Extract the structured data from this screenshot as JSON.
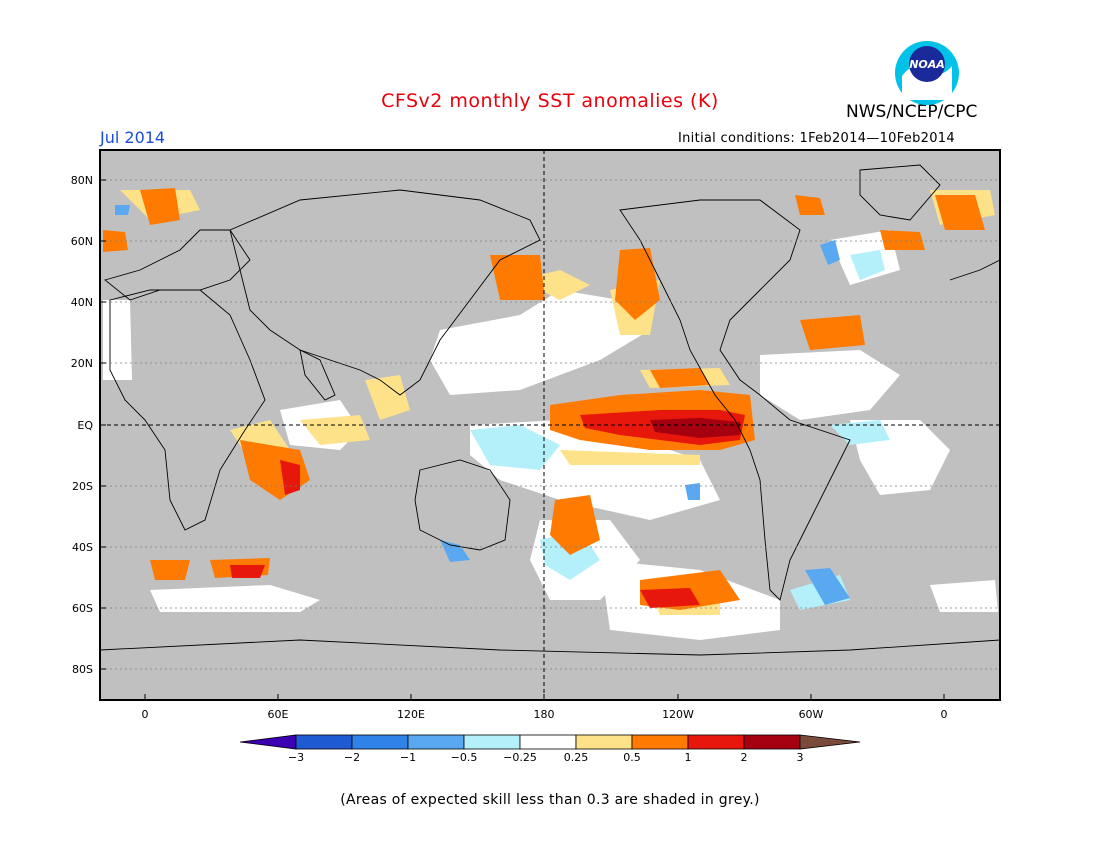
{
  "title": "CFSv2 monthly SST anomalies (K)",
  "organization": "NWS/NCEP/CPC",
  "logo_text": "NOAA",
  "forecast_month": "Jul 2014",
  "initial_conditions": "Initial conditions: 1Feb2014—10Feb2014",
  "footnote": "(Areas of expected skill less than 0.3 are shaded in grey.)",
  "map": {
    "lat_labels": [
      "80N",
      "60N",
      "40N",
      "20N",
      "EQ",
      "20S",
      "40S",
      "60S",
      "80S"
    ],
    "lon_labels": [
      "0",
      "60E",
      "120E",
      "180",
      "120W",
      "60W",
      "0"
    ],
    "colors": {
      "skill_mask": "#c0c0c0",
      "land": "#c0c0c0",
      "coast": "#000000",
      "grid": "#808080"
    }
  },
  "colorbar": {
    "labels": [
      "−3",
      "−2",
      "−1",
      "−0.5",
      "−0.25",
      "0.25",
      "0.5",
      "1",
      "2",
      "3"
    ],
    "colors": [
      "#3a00b2",
      "#1e5ad2",
      "#2f82e8",
      "#5aa9f0",
      "#b4f0fa",
      "#ffffff",
      "#fde28a",
      "#ff7a00",
      "#e8170b",
      "#a5000f",
      "#7a4a3a"
    ]
  }
}
